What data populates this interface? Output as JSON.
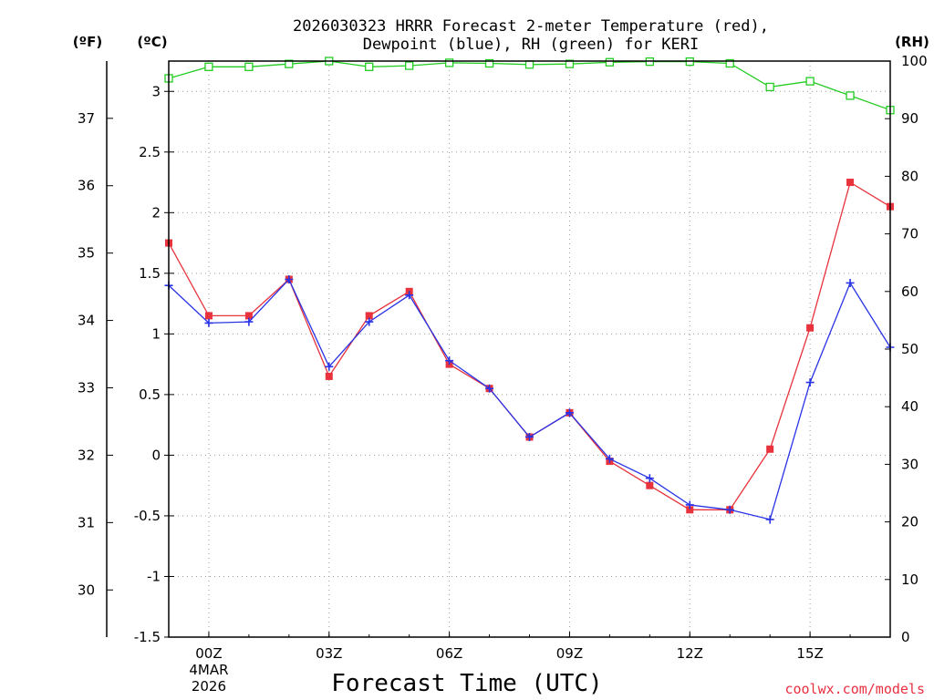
{
  "chart_data": {
    "type": "line",
    "title_line1": "2026030323 HRRR Forecast 2-meter Temperature (red),",
    "title_line2": "Dewpoint (blue), RH (green) for KERI",
    "xlabel": "Forecast Time (UTC)",
    "x_ticks": [
      {
        "hour": 0,
        "label": "00Z",
        "sub1": "4MAR",
        "sub2": "2026"
      },
      {
        "hour": 3,
        "label": "03Z",
        "sub1": "",
        "sub2": ""
      },
      {
        "hour": 6,
        "label": "06Z",
        "sub1": "",
        "sub2": ""
      },
      {
        "hour": 9,
        "label": "09Z",
        "sub1": "",
        "sub2": ""
      },
      {
        "hour": 12,
        "label": "12Z",
        "sub1": "",
        "sub2": ""
      },
      {
        "hour": 15,
        "label": "15Z",
        "sub1": "",
        "sub2": ""
      }
    ],
    "xlim": [
      -1,
      17
    ],
    "x": [
      -1,
      0,
      1,
      2,
      3,
      4,
      5,
      6,
      7,
      8,
      9,
      10,
      11,
      12,
      13,
      14,
      15,
      16,
      17
    ],
    "celsius_axis": {
      "label": "(ºC)",
      "ylim": [
        -1.5,
        3.25
      ],
      "ticks": [
        "3",
        "2.5",
        "2",
        "1.5",
        "1",
        "0.5",
        "0",
        "-0.5",
        "-1",
        "-1.5"
      ],
      "tick_values": [
        3,
        2.5,
        2,
        1.5,
        1,
        0.5,
        0,
        -0.5,
        -1,
        -1.5
      ]
    },
    "fahrenheit_axis": {
      "label": "(ºF)",
      "ticks": [
        "37",
        "36",
        "35",
        "34",
        "33",
        "32",
        "31",
        "30"
      ],
      "tick_values": [
        37,
        36,
        35,
        34,
        33,
        32,
        31,
        30
      ]
    },
    "rh_axis": {
      "label": "(RH)",
      "ylim": [
        0,
        100
      ],
      "ticks": [
        "100",
        "90",
        "80",
        "70",
        "60",
        "50",
        "40",
        "30",
        "20",
        "10",
        "0"
      ],
      "tick_values": [
        100,
        90,
        80,
        70,
        60,
        50,
        40,
        30,
        20,
        10,
        0
      ]
    },
    "series": [
      {
        "name": "Temperature",
        "unit": "C",
        "color": "#e8323c",
        "marker": "filled-square",
        "values": [
          1.75,
          1.15,
          1.15,
          1.45,
          0.65,
          1.15,
          1.35,
          0.75,
          0.55,
          0.15,
          0.35,
          -0.05,
          -0.25,
          -0.45,
          -0.45,
          0.05,
          1.05,
          2.25,
          2.05
        ]
      },
      {
        "name": "Dewpoint",
        "unit": "C",
        "color": "#2832e6",
        "marker": "plus",
        "values": [
          1.4,
          1.09,
          1.1,
          1.45,
          0.73,
          1.1,
          1.32,
          0.78,
          0.55,
          0.15,
          0.35,
          -0.03,
          -0.19,
          -0.41,
          -0.45,
          -0.53,
          0.6,
          1.42,
          0.89
        ]
      },
      {
        "name": "RH",
        "unit": "%",
        "color": "#22cc22",
        "marker": "open-square",
        "values": [
          97,
          99,
          99,
          99.5,
          100,
          99,
          99.2,
          99.7,
          99.6,
          99.4,
          99.5,
          99.8,
          99.9,
          99.9,
          99.6,
          95.5,
          96.5,
          94,
          91.5
        ]
      }
    ]
  },
  "footer": {
    "credit": "coolwx.com/models"
  }
}
